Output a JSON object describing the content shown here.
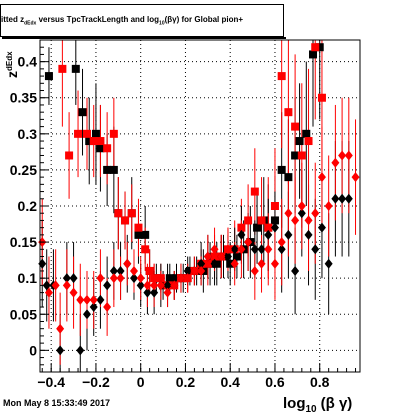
{
  "chart_data": {
    "type": "scatter",
    "title": "fitted z_dEdx versus TpcTrackLength and log10(βγ) for Global pion+",
    "title_parts": {
      "lead": "itted  z",
      "sub1": "dEdx",
      "mid": "  versus TpcTrackLength and log",
      "sub2": "10",
      "tail": "(βγ) for Global pion+"
    },
    "xlabel": "log10 (β γ)",
    "xlabel_parts": {
      "main": "log",
      "sub": "10",
      "tail": "(β γ)"
    },
    "ylabel": "z_dEdx",
    "ylabel_parts": {
      "main": "z",
      "sub": "dEdx"
    },
    "xlim": [
      -0.45,
      0.98
    ],
    "ylim": [
      -0.03,
      0.43
    ],
    "x_ticks": [
      -0.4,
      -0.2,
      0,
      0.2,
      0.4,
      0.6,
      0.8
    ],
    "x_tick_labels": [
      "−0.4",
      "−0.2",
      "0",
      "0.2",
      "0.4",
      "0.6",
      "0.8"
    ],
    "y_ticks": [
      0,
      0.05,
      0.1,
      0.15,
      0.2,
      0.25,
      0.3,
      0.35,
      0.4
    ],
    "y_tick_labels": [
      "0",
      "0.05",
      "0.1",
      "0.15",
      "0.2",
      "0.25",
      "0.3",
      "0.35",
      "0.4"
    ],
    "grid": true,
    "series": [
      {
        "color": "#000000",
        "marker": "square",
        "points": [
          [
            -0.41,
            0.38,
            0.04
          ],
          [
            -0.29,
            0.39,
            0.05
          ],
          [
            -0.26,
            0.33,
            0.06
          ],
          [
            -0.23,
            0.29,
            0.06
          ],
          [
            -0.2,
            0.3,
            0.07
          ],
          [
            -0.18,
            0.28,
            0.06
          ],
          [
            -0.15,
            0.25,
            0.05
          ],
          [
            -0.12,
            0.25,
            0.06
          ],
          [
            -0.1,
            0.19,
            0.05
          ],
          [
            -0.07,
            0.18,
            0.04
          ],
          [
            -0.04,
            0.19,
            0.05
          ],
          [
            -0.01,
            0.16,
            0.04
          ],
          [
            0.02,
            0.16,
            0.04
          ],
          [
            0.04,
            0.11,
            0.03
          ],
          [
            0.07,
            0.1,
            0.02
          ],
          [
            0.1,
            0.09,
            0.02
          ],
          [
            0.13,
            0.1,
            0.02
          ],
          [
            0.16,
            0.1,
            0.02
          ],
          [
            0.19,
            0.1,
            0.02
          ],
          [
            0.22,
            0.11,
            0.02
          ],
          [
            0.25,
            0.11,
            0.02
          ],
          [
            0.28,
            0.11,
            0.03
          ],
          [
            0.31,
            0.12,
            0.03
          ],
          [
            0.34,
            0.12,
            0.03
          ],
          [
            0.37,
            0.13,
            0.03
          ],
          [
            0.4,
            0.12,
            0.03
          ],
          [
            0.43,
            0.13,
            0.03
          ],
          [
            0.46,
            0.14,
            0.04
          ],
          [
            0.49,
            0.15,
            0.05
          ],
          [
            0.52,
            0.17,
            0.05
          ],
          [
            0.55,
            0.18,
            0.06
          ],
          [
            0.57,
            0.17,
            0.06
          ],
          [
            0.6,
            0.18,
            0.06
          ],
          [
            0.63,
            0.25,
            0.08
          ],
          [
            0.66,
            0.24,
            0.08
          ],
          [
            0.69,
            0.27,
            0.08
          ],
          [
            0.71,
            0.29,
            0.08
          ],
          [
            0.74,
            0.3,
            0.1
          ],
          [
            0.77,
            0.41,
            0.1
          ],
          [
            0.8,
            0.42,
            0.1
          ]
        ]
      },
      {
        "color": "#ff0000",
        "marker": "square",
        "points": [
          [
            -0.35,
            0.39,
            0.08
          ],
          [
            -0.32,
            0.27,
            0.06
          ],
          [
            -0.28,
            0.3,
            0.06
          ],
          [
            -0.24,
            0.3,
            0.05
          ],
          [
            -0.21,
            0.29,
            0.05
          ],
          [
            -0.18,
            0.29,
            0.05
          ],
          [
            -0.15,
            0.28,
            0.05
          ],
          [
            -0.12,
            0.3,
            0.05
          ],
          [
            -0.1,
            0.19,
            0.05
          ],
          [
            -0.07,
            0.18,
            0.04
          ],
          [
            -0.04,
            0.19,
            0.04
          ],
          [
            -0.01,
            0.17,
            0.04
          ],
          [
            0.02,
            0.14,
            0.03
          ],
          [
            0.04,
            0.11,
            0.03
          ],
          [
            0.06,
            0.1,
            0.02
          ],
          [
            0.09,
            0.1,
            0.02
          ],
          [
            0.12,
            0.09,
            0.02
          ],
          [
            0.15,
            0.09,
            0.02
          ],
          [
            0.18,
            0.1,
            0.02
          ],
          [
            0.21,
            0.1,
            0.02
          ],
          [
            0.24,
            0.11,
            0.02
          ],
          [
            0.27,
            0.12,
            0.02
          ],
          [
            0.3,
            0.12,
            0.03
          ],
          [
            0.33,
            0.13,
            0.03
          ],
          [
            0.36,
            0.13,
            0.03
          ],
          [
            0.39,
            0.14,
            0.03
          ],
          [
            0.42,
            0.14,
            0.04
          ],
          [
            0.45,
            0.17,
            0.04
          ],
          [
            0.48,
            0.18,
            0.05
          ],
          [
            0.51,
            0.22,
            0.06
          ],
          [
            0.54,
            0.18,
            0.06
          ],
          [
            0.57,
            0.17,
            0.07
          ],
          [
            0.6,
            0.2,
            0.08
          ],
          [
            0.63,
            0.38,
            0.1
          ],
          [
            0.66,
            0.33,
            0.1
          ],
          [
            0.69,
            0.31,
            0.1
          ],
          [
            0.72,
            0.27,
            0.1
          ],
          [
            0.75,
            0.29,
            0.1
          ],
          [
            0.78,
            0.42,
            0.1
          ],
          [
            0.81,
            0.35,
            0.1
          ]
        ]
      },
      {
        "color": "#000000",
        "marker": "diamond",
        "points": [
          [
            -0.44,
            0.12,
            0.06
          ],
          [
            -0.42,
            0.09,
            0.05
          ],
          [
            -0.39,
            0.09,
            0.05
          ],
          [
            -0.36,
            0.0,
            0.05
          ],
          [
            -0.33,
            0.1,
            0.05
          ],
          [
            -0.3,
            0.1,
            0.05
          ],
          [
            -0.27,
            0.0,
            0.05
          ],
          [
            -0.24,
            0.05,
            0.05
          ],
          [
            -0.21,
            0.06,
            0.04
          ],
          [
            -0.18,
            0.07,
            0.04
          ],
          [
            -0.15,
            0.09,
            0.04
          ],
          [
            -0.12,
            0.11,
            0.04
          ],
          [
            -0.09,
            0.11,
            0.04
          ],
          [
            -0.06,
            0.12,
            0.04
          ],
          [
            -0.03,
            0.1,
            0.03
          ],
          [
            0.0,
            0.09,
            0.03
          ],
          [
            0.03,
            0.08,
            0.03
          ],
          [
            0.06,
            0.08,
            0.03
          ],
          [
            0.09,
            0.09,
            0.03
          ],
          [
            0.12,
            0.09,
            0.03
          ],
          [
            0.15,
            0.09,
            0.02
          ],
          [
            0.18,
            0.1,
            0.02
          ],
          [
            0.21,
            0.11,
            0.02
          ],
          [
            0.24,
            0.11,
            0.02
          ],
          [
            0.27,
            0.12,
            0.03
          ],
          [
            0.3,
            0.13,
            0.03
          ],
          [
            0.33,
            0.12,
            0.03
          ],
          [
            0.36,
            0.13,
            0.03
          ],
          [
            0.39,
            0.13,
            0.03
          ],
          [
            0.42,
            0.14,
            0.03
          ],
          [
            0.45,
            0.16,
            0.04
          ],
          [
            0.48,
            0.15,
            0.04
          ],
          [
            0.51,
            0.14,
            0.04
          ],
          [
            0.54,
            0.14,
            0.04
          ],
          [
            0.57,
            0.16,
            0.05
          ],
          [
            0.6,
            0.17,
            0.05
          ],
          [
            0.63,
            0.14,
            0.06
          ],
          [
            0.66,
            0.16,
            0.06
          ],
          [
            0.69,
            0.11,
            0.06
          ],
          [
            0.72,
            0.19,
            0.06
          ],
          [
            0.75,
            0.16,
            0.07
          ],
          [
            0.78,
            0.14,
            0.07
          ],
          [
            0.81,
            0.17,
            0.07
          ],
          [
            0.84,
            0.12,
            0.07
          ],
          [
            0.87,
            0.21,
            0.08
          ],
          [
            0.9,
            0.21,
            0.08
          ],
          [
            0.93,
            0.21,
            0.08
          ]
        ]
      },
      {
        "color": "#ff0000",
        "marker": "diamond",
        "points": [
          [
            -0.44,
            0.15,
            0.06
          ],
          [
            -0.41,
            0.08,
            0.05
          ],
          [
            -0.38,
            0.09,
            0.05
          ],
          [
            -0.36,
            0.03,
            0.05
          ],
          [
            -0.33,
            0.09,
            0.05
          ],
          [
            -0.3,
            0.08,
            0.05
          ],
          [
            -0.27,
            0.07,
            0.05
          ],
          [
            -0.24,
            0.07,
            0.04
          ],
          [
            -0.21,
            0.07,
            0.04
          ],
          [
            -0.18,
            0.1,
            0.04
          ],
          [
            -0.15,
            0.06,
            0.04
          ],
          [
            -0.12,
            0.1,
            0.04
          ],
          [
            -0.09,
            0.1,
            0.03
          ],
          [
            -0.06,
            0.12,
            0.03
          ],
          [
            -0.03,
            0.11,
            0.03
          ],
          [
            0.0,
            0.1,
            0.03
          ],
          [
            0.03,
            0.09,
            0.03
          ],
          [
            0.06,
            0.09,
            0.03
          ],
          [
            0.09,
            0.09,
            0.02
          ],
          [
            0.12,
            0.08,
            0.02
          ],
          [
            0.15,
            0.09,
            0.02
          ],
          [
            0.18,
            0.1,
            0.02
          ],
          [
            0.21,
            0.1,
            0.02
          ],
          [
            0.24,
            0.11,
            0.02
          ],
          [
            0.27,
            0.11,
            0.02
          ],
          [
            0.3,
            0.13,
            0.03
          ],
          [
            0.33,
            0.14,
            0.03
          ],
          [
            0.36,
            0.13,
            0.03
          ],
          [
            0.39,
            0.14,
            0.03
          ],
          [
            0.42,
            0.12,
            0.03
          ],
          [
            0.45,
            0.14,
            0.04
          ],
          [
            0.48,
            0.15,
            0.04
          ],
          [
            0.51,
            0.11,
            0.04
          ],
          [
            0.54,
            0.12,
            0.04
          ],
          [
            0.57,
            0.14,
            0.05
          ],
          [
            0.6,
            0.12,
            0.05
          ],
          [
            0.63,
            0.15,
            0.06
          ],
          [
            0.66,
            0.19,
            0.06
          ],
          [
            0.69,
            0.18,
            0.06
          ],
          [
            0.72,
            0.2,
            0.06
          ],
          [
            0.75,
            0.18,
            0.07
          ],
          [
            0.78,
            0.19,
            0.07
          ],
          [
            0.81,
            0.24,
            0.07
          ],
          [
            0.84,
            0.2,
            0.07
          ],
          [
            0.87,
            0.26,
            0.08
          ],
          [
            0.9,
            0.27,
            0.08
          ],
          [
            0.93,
            0.27,
            0.08
          ],
          [
            0.96,
            0.24,
            0.08
          ]
        ]
      }
    ]
  },
  "footer": {
    "timestamp": "Mon May  8 15:33:49 2017"
  }
}
